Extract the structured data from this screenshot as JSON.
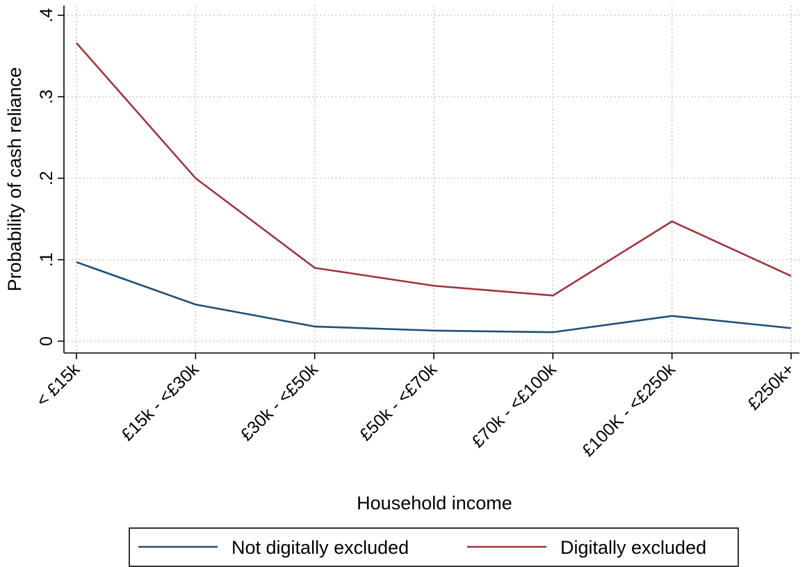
{
  "chart_data": {
    "type": "line",
    "xlabel": "Household income",
    "ylabel": "Probability of cash reliance",
    "categories": [
      "< £15k",
      "£15k - <£30k",
      "£30k - <£50k",
      "£50k - <£70k",
      "£70k - <£100k",
      "£100K - <£250k",
      "£250k+"
    ],
    "ylim": [
      0,
      0.4
    ],
    "yticks": [
      0,
      0.1,
      0.2,
      0.3,
      0.4
    ],
    "ytick_labels": [
      "0",
      ".1",
      ".2",
      ".3",
      ".4"
    ],
    "grid": true,
    "legend_position": "bottom",
    "series": [
      {
        "name": "Not digitally excluded",
        "color": "#1f4e79",
        "values": [
          0.097,
          0.045,
          0.018,
          0.013,
          0.011,
          0.031,
          0.016
        ]
      },
      {
        "name": "Digitally excluded",
        "color": "#a0343c",
        "values": [
          0.366,
          0.2,
          0.09,
          0.068,
          0.056,
          0.147,
          0.08
        ]
      }
    ]
  }
}
